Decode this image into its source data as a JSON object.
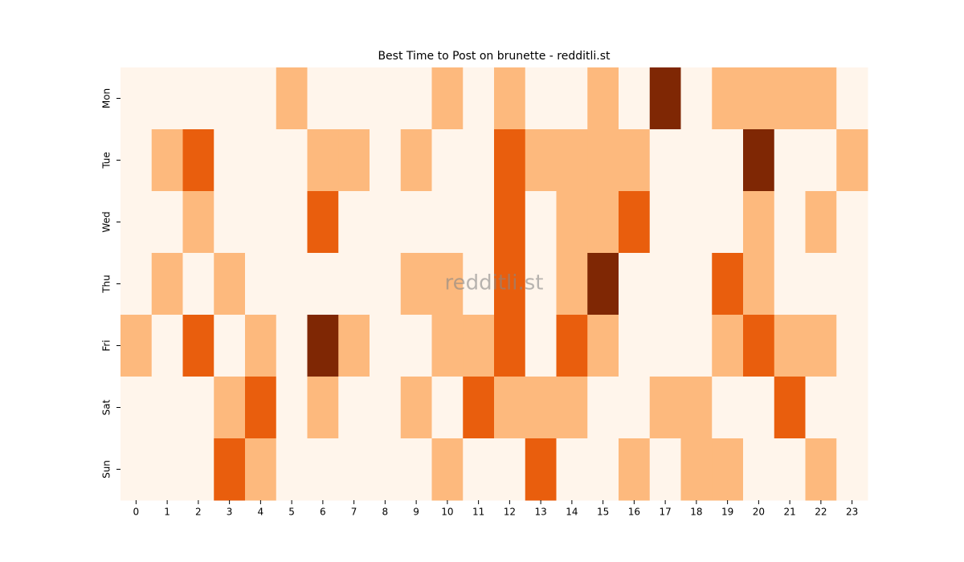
{
  "chart_data": {
    "type": "heatmap",
    "title": "Best Time to Post on brunette - redditli.st",
    "watermark": "redditli.st",
    "x": [
      0,
      1,
      2,
      3,
      4,
      5,
      6,
      7,
      8,
      9,
      10,
      11,
      12,
      13,
      14,
      15,
      16,
      17,
      18,
      19,
      20,
      21,
      22,
      23
    ],
    "y": [
      "Mon",
      "Tue",
      "Wed",
      "Thu",
      "Fri",
      "Sat",
      "Sun"
    ],
    "values": [
      [
        0,
        0,
        0,
        0,
        0,
        1,
        0,
        0,
        0,
        0,
        1,
        0,
        1,
        0,
        0,
        1,
        0,
        3,
        0,
        1,
        1,
        1,
        1,
        0
      ],
      [
        0,
        1,
        2,
        0,
        0,
        0,
        1,
        1,
        0,
        1,
        0,
        0,
        2,
        1,
        1,
        1,
        1,
        0,
        0,
        0,
        3,
        0,
        0,
        1
      ],
      [
        0,
        0,
        1,
        0,
        0,
        0,
        2,
        0,
        0,
        0,
        0,
        0,
        2,
        0,
        1,
        1,
        2,
        0,
        0,
        0,
        1,
        0,
        1,
        0
      ],
      [
        0,
        1,
        0,
        1,
        0,
        0,
        0,
        0,
        0,
        1,
        1,
        0,
        2,
        0,
        1,
        3,
        0,
        0,
        0,
        2,
        1,
        0,
        0,
        0
      ],
      [
        1,
        0,
        2,
        0,
        1,
        0,
        3,
        1,
        0,
        0,
        1,
        1,
        2,
        0,
        2,
        1,
        0,
        0,
        0,
        1,
        2,
        1,
        1,
        0
      ],
      [
        0,
        0,
        0,
        1,
        2,
        0,
        1,
        0,
        0,
        1,
        0,
        2,
        1,
        1,
        1,
        0,
        0,
        1,
        1,
        0,
        0,
        2,
        0,
        0
      ],
      [
        0,
        0,
        0,
        2,
        1,
        0,
        0,
        0,
        0,
        0,
        1,
        0,
        0,
        2,
        0,
        0,
        1,
        0,
        1,
        1,
        0,
        0,
        1,
        0
      ]
    ],
    "colormap": [
      "#fff5eb",
      "#fdb97d",
      "#e95e0d",
      "#7f2704"
    ],
    "vlim": [
      0,
      3
    ]
  }
}
